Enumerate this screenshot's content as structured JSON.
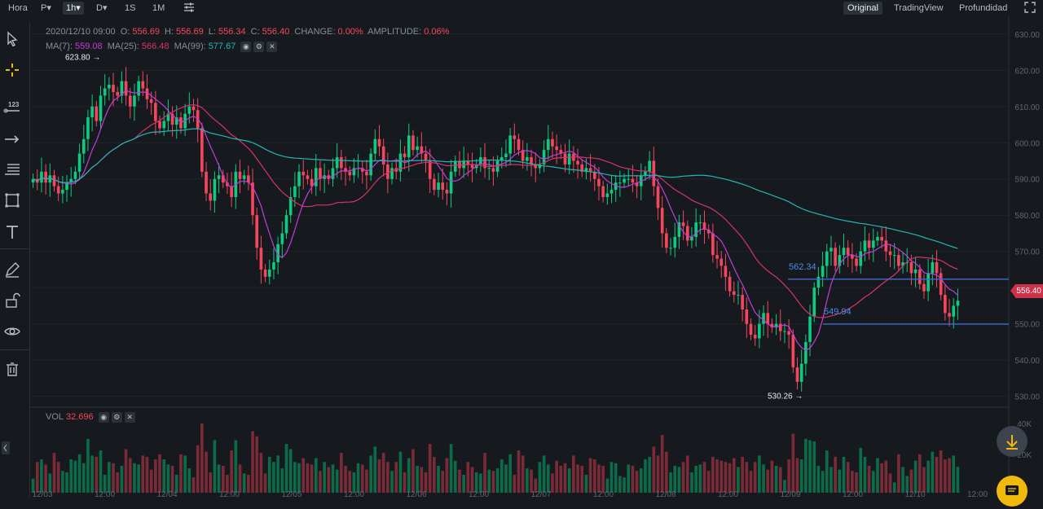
{
  "toolbar": {
    "timeframes": [
      {
        "label": "Hora",
        "active": false
      },
      {
        "label": "P▾",
        "active": false
      },
      {
        "label": "1h▾",
        "active": true
      },
      {
        "label": "D▾",
        "active": false
      },
      {
        "label": "1S",
        "active": false
      },
      {
        "label": "1M",
        "active": false
      }
    ],
    "views": [
      {
        "label": "Original",
        "active": true
      },
      {
        "label": "TradingView",
        "active": false
      },
      {
        "label": "Profundidad",
        "active": false
      }
    ]
  },
  "ohlc": {
    "datetime": "2020/12/10 09:00",
    "o_label": "O:",
    "o": "556.69",
    "h_label": "H:",
    "h": "556.69",
    "l_label": "L:",
    "l": "556.34",
    "c_label": "C:",
    "c": "556.40",
    "change_label": "CHANGE:",
    "change": "0.00%",
    "amplitude_label": "AMPLITUDE:",
    "amplitude": "0.06%"
  },
  "ma": [
    {
      "label": "MA(7):",
      "value": "559.08",
      "color": "#c43cd8"
    },
    {
      "label": "MA(25):",
      "value": "566.48",
      "color": "#d6336c"
    },
    {
      "label": "MA(99):",
      "value": "577.67",
      "color": "#23b5b5"
    }
  ],
  "vol": {
    "label": "VOL",
    "value": "32.696"
  },
  "current_price": "556.40",
  "annotations": {
    "high": "623.80",
    "low": "530.26",
    "line_upper": "562.34",
    "line_lower": "549.94"
  },
  "colors": {
    "up": "#0ecb81",
    "down": "#f6465d",
    "bg": "#161a1e",
    "grid": "#1f242b",
    "hline": "#3d6ad6"
  },
  "chart_data": {
    "type": "candlestick",
    "y_ticks": [
      "630.00",
      "620.00",
      "610.00",
      "600.00",
      "590.00",
      "580.00",
      "570.00",
      "560.00",
      "550.00",
      "540.00",
      "530.00"
    ],
    "ylim": [
      527,
      634
    ],
    "x_ticks": [
      "12/03",
      "12:00",
      "12/04",
      "12:00",
      "12/05",
      "12:00",
      "12/06",
      "12:00",
      "12/07",
      "12:00",
      "12/08",
      "12:00",
      "12/09",
      "12:00",
      "12/10",
      "12:00"
    ],
    "vol_ticks": [
      "40K",
      "20K"
    ],
    "closes": [
      590,
      589,
      592,
      589,
      591,
      588,
      586,
      587,
      589,
      590,
      592,
      597,
      601,
      607,
      610,
      606,
      613,
      615,
      616,
      614,
      613,
      617,
      613,
      610,
      613,
      617,
      615,
      612,
      611,
      606,
      604,
      606,
      608,
      605,
      607,
      604,
      608,
      610,
      609,
      604,
      592,
      586,
      584,
      590,
      591,
      589,
      588,
      585,
      592,
      590,
      591,
      589,
      580,
      571,
      565,
      563,
      565,
      567,
      572,
      575,
      580,
      585,
      588,
      592,
      591,
      590,
      588,
      593,
      590,
      591,
      590,
      593,
      596,
      593,
      592,
      591,
      593,
      593,
      592,
      591,
      597,
      601,
      599,
      594,
      590,
      593,
      592,
      597,
      596,
      602,
      598,
      599,
      597,
      595,
      590,
      587,
      589,
      587,
      586,
      592,
      595,
      593,
      595,
      594,
      593,
      594,
      596,
      593,
      593,
      592,
      595,
      596,
      597,
      602,
      601,
      598,
      595,
      596,
      594,
      593,
      594,
      598,
      601,
      599,
      598,
      597,
      594,
      597,
      595,
      594,
      592,
      593,
      592,
      590,
      588,
      585,
      586,
      587,
      589,
      589,
      590,
      590,
      589,
      588,
      591,
      592,
      595,
      588,
      582,
      575,
      571,
      571,
      574,
      578,
      577,
      573,
      574,
      578,
      578,
      576,
      575,
      569,
      568,
      566,
      563,
      559,
      558,
      558,
      554,
      550,
      547,
      546,
      550,
      553,
      550,
      549,
      550,
      548,
      548,
      547,
      538,
      534,
      539,
      545,
      552,
      560,
      563,
      566,
      570,
      571,
      566,
      569,
      571,
      569,
      568,
      566,
      570,
      573,
      571,
      573,
      574,
      573,
      570,
      569,
      569,
      566,
      567,
      567,
      564,
      565,
      561,
      559,
      564,
      567,
      564,
      558,
      553,
      552,
      555,
      556.4
    ],
    "ma7_last": 559.08,
    "ma25_last": 566.48,
    "ma99_last": 577.67
  }
}
